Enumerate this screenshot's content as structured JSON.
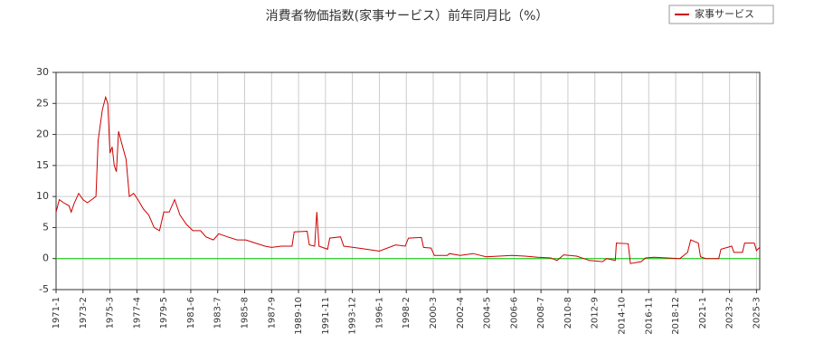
{
  "chart_data": {
    "type": "line",
    "title": "消費者物価指数(家事サービス）前年同月比（%）",
    "x": [
      "1971-1",
      "1971-4",
      "1971-8",
      "1972-1",
      "1972-3",
      "1972-6",
      "1972-10",
      "1973-2",
      "1973-6",
      "1973-10",
      "1974-2",
      "1974-4",
      "1974-8",
      "1974-11",
      "1975-1",
      "1975-3",
      "1975-5",
      "1975-7",
      "1975-9",
      "1975-11",
      "1976-2",
      "1976-6",
      "1976-9",
      "1977-1",
      "1977-5",
      "1977-10",
      "1978-3",
      "1978-8",
      "1979-1",
      "1979-5",
      "1979-10",
      "1980-3",
      "1980-8",
      "1981-2",
      "1981-8",
      "1982-3",
      "1982-8",
      "1983-3",
      "1983-8",
      "1984-4",
      "1985-1",
      "1985-9",
      "1986-6",
      "1987-3",
      "1987-9",
      "1988-6",
      "1989-4",
      "1989-6",
      "1990-6",
      "1990-8",
      "1991-1",
      "1991-3",
      "1991-5",
      "1992-1",
      "1992-3",
      "1993-1",
      "1993-4",
      "1994-1",
      "1995-1",
      "1996-1",
      "1997-4",
      "1998-1",
      "1998-4",
      "1999-4",
      "1999-6",
      "2000-1",
      "2000-4",
      "2001-4",
      "2001-6",
      "2002-4",
      "2003-4",
      "2004-4",
      "2005-4",
      "2006-4",
      "2007-4",
      "2008-4",
      "2009-4",
      "2009-10",
      "2010-4",
      "2011-4",
      "2012-4",
      "2013-4",
      "2013-8",
      "2014-4",
      "2014-5",
      "2015-4",
      "2015-6",
      "2016-4",
      "2016-8",
      "2017-4",
      "2018-4",
      "2019-4",
      "2019-11",
      "2020-2",
      "2020-9",
      "2020-11",
      "2021-4",
      "2022-4",
      "2022-6",
      "2023-4",
      "2023-6",
      "2024-2",
      "2024-4",
      "2025-1",
      "2025-3",
      "2025-6"
    ],
    "series": [
      {
        "name": "家事サービス",
        "color": "#cc0000",
        "values": [
          7.5,
          9.5,
          9,
          8.5,
          7.5,
          9,
          10.5,
          9.5,
          9,
          9.5,
          10,
          19,
          24,
          26,
          25,
          17,
          18,
          15,
          14,
          20.5,
          18.5,
          16,
          10,
          10.5,
          9.5,
          8,
          7,
          5,
          4.5,
          7.5,
          7.5,
          9.5,
          7,
          5.5,
          4.5,
          4.5,
          3.5,
          3,
          4,
          3.5,
          3,
          3,
          2.5,
          2,
          1.8,
          2,
          2,
          4.3,
          4.4,
          2.2,
          2,
          7.5,
          2,
          1.5,
          3.3,
          3.5,
          2,
          1.8,
          1.5,
          1.2,
          2.2,
          2,
          3.3,
          3.4,
          1.8,
          1.7,
          0.5,
          0.5,
          0.8,
          0.5,
          0.8,
          0.3,
          0.4,
          0.5,
          0.4,
          0.2,
          0.1,
          -0.3,
          0.6,
          0.4,
          -0.3,
          -0.5,
          0,
          -0.3,
          2.5,
          2.4,
          -0.8,
          -0.5,
          0.1,
          0.2,
          0.1,
          0,
          1,
          3,
          2.5,
          0.3,
          0,
          0,
          1.5,
          2,
          1,
          1,
          2.5,
          2.5,
          1.3,
          1.8
        ]
      }
    ],
    "xlim": [
      "1971-1",
      "2025-6"
    ],
    "xticks": [
      "1971-1",
      "1973-2",
      "1975-3",
      "1977-4",
      "1979-5",
      "1981-6",
      "1983-7",
      "1985-8",
      "1987-9",
      "1989-10",
      "1991-11",
      "1993-12",
      "1996-1",
      "1998-2",
      "2000-3",
      "2002-4",
      "2004-5",
      "2006-6",
      "2008-7",
      "2010-8",
      "2012-9",
      "2014-10",
      "2016-11",
      "2018-12",
      "2021-1",
      "2023-2",
      "2025-3"
    ],
    "ylim": [
      -5,
      30
    ],
    "yticks": [
      -5,
      0,
      5,
      10,
      15,
      20,
      25,
      30
    ],
    "grid": true,
    "hline": {
      "value": 0,
      "color": "#00cc00"
    },
    "legend": "top-right"
  }
}
